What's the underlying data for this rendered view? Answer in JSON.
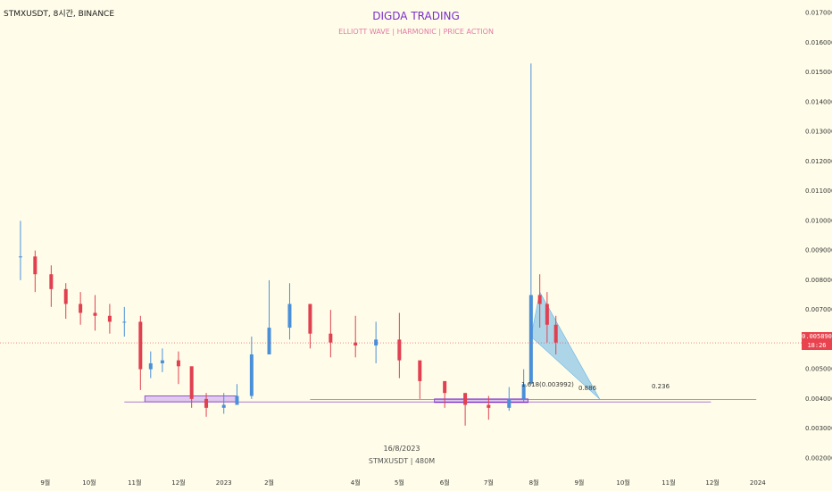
{
  "header": {
    "symbol": "STMXUSDT, 8시간, BINANCE",
    "brand": "DIGDA TRADING",
    "tagline": "ELLIOTT WAVE  |  HARMONIC  |  PRICE ACTION"
  },
  "footer": {
    "date_label": "16/8/2023",
    "watermark": "STMXUSDT | 480M"
  },
  "price_tag": {
    "price": "0.005890",
    "timer": "18:26"
  },
  "annotations": {
    "fib_1618": "1.618(0.003992)",
    "fib_0886": "0.886",
    "fib_0236": "0.236"
  },
  "colors": {
    "up": "#4a90d9",
    "down": "#e04050",
    "accent": "#7b2ec8",
    "harmonic": "#6ab4e8",
    "zone": "#c9a6f0"
  },
  "chart_data": {
    "type": "candlestick",
    "x_labels": [
      "9월",
      "10월",
      "11월",
      "12월",
      "2023",
      "2월",
      "4월",
      "5월",
      "6월",
      "7월",
      "8월",
      "9월",
      "10월",
      "11월",
      "12월",
      "2024"
    ],
    "y_ticks": [
      "0.017000",
      "0.016000",
      "0.015000",
      "0.014000",
      "0.013000",
      "0.012000",
      "0.011000",
      "0.010000",
      "0.009000",
      "0.008000",
      "0.007000",
      "0.006000",
      "0.005000",
      "0.004000",
      "0.003000",
      "0.002000"
    ],
    "ylim": [
      0.0018,
      0.0172
    ],
    "last_price": 0.00589,
    "support_zones": [
      {
        "from": "2022-11-08",
        "to": "2023-01-10",
        "low": 0.0039,
        "high": 0.0041
      },
      {
        "from": "2023-05-25",
        "to": "2023-07-28",
        "low": 0.0039,
        "high": 0.004
      }
    ],
    "harmonic_pattern": [
      {
        "date": "2023-07-30",
        "price": 0.0061
      },
      {
        "date": "2023-08-05",
        "price": 0.0076
      },
      {
        "date": "2023-09-15",
        "price": 0.00399
      }
    ],
    "series": [
      {
        "dates": [
          "2022-08-15",
          "2022-08-25",
          "2022-09-05",
          "2022-09-15",
          "2022-09-25",
          "2022-10-05",
          "2022-10-15",
          "2022-10-25",
          "2022-11-05",
          "2022-11-12",
          "2022-11-20",
          "2022-12-01",
          "2022-12-10",
          "2022-12-20",
          "2023-01-01",
          "2023-01-10",
          "2023-01-20",
          "2023-02-01",
          "2023-02-15",
          "2023-03-01",
          "2023-03-15",
          "2023-04-01",
          "2023-04-15",
          "2023-05-01",
          "2023-05-15",
          "2023-06-01",
          "2023-06-15",
          "2023-07-01",
          "2023-07-15",
          "2023-07-25",
          "2023-07-30",
          "2023-08-05",
          "2023-08-10",
          "2023-08-16"
        ],
        "close": [
          0.0088,
          0.0082,
          0.0077,
          0.0072,
          0.0069,
          0.0068,
          0.0066,
          0.0066,
          0.005,
          0.0052,
          0.0053,
          0.0051,
          0.004,
          0.0037,
          0.0038,
          0.0041,
          0.0055,
          0.0064,
          0.0072,
          0.0062,
          0.0059,
          0.0058,
          0.006,
          0.0053,
          0.0046,
          0.0042,
          0.0038,
          0.0037,
          0.004,
          0.0045,
          0.0075,
          0.0072,
          0.0065,
          0.0059
        ],
        "high": [
          0.01,
          0.009,
          0.0085,
          0.0079,
          0.0076,
          0.0075,
          0.0072,
          0.0071,
          0.0068,
          0.0056,
          0.0057,
          0.0056,
          0.0047,
          0.0042,
          0.0042,
          0.0045,
          0.0061,
          0.008,
          0.0079,
          0.0068,
          0.007,
          0.0068,
          0.0066,
          0.0069,
          0.005,
          0.0046,
          0.0042,
          0.0041,
          0.0044,
          0.005,
          0.0153,
          0.0082,
          0.0076,
          0.0068
        ],
        "low": [
          0.008,
          0.0076,
          0.0071,
          0.0067,
          0.0065,
          0.0063,
          0.0062,
          0.0061,
          0.0043,
          0.0047,
          0.0049,
          0.0045,
          0.0037,
          0.0034,
          0.0035,
          0.0038,
          0.004,
          0.0058,
          0.006,
          0.0057,
          0.0054,
          0.0054,
          0.0052,
          0.0047,
          0.004,
          0.0037,
          0.0031,
          0.0033,
          0.0036,
          0.0039,
          0.0058,
          0.0064,
          0.0059,
          0.0055
        ]
      }
    ]
  }
}
